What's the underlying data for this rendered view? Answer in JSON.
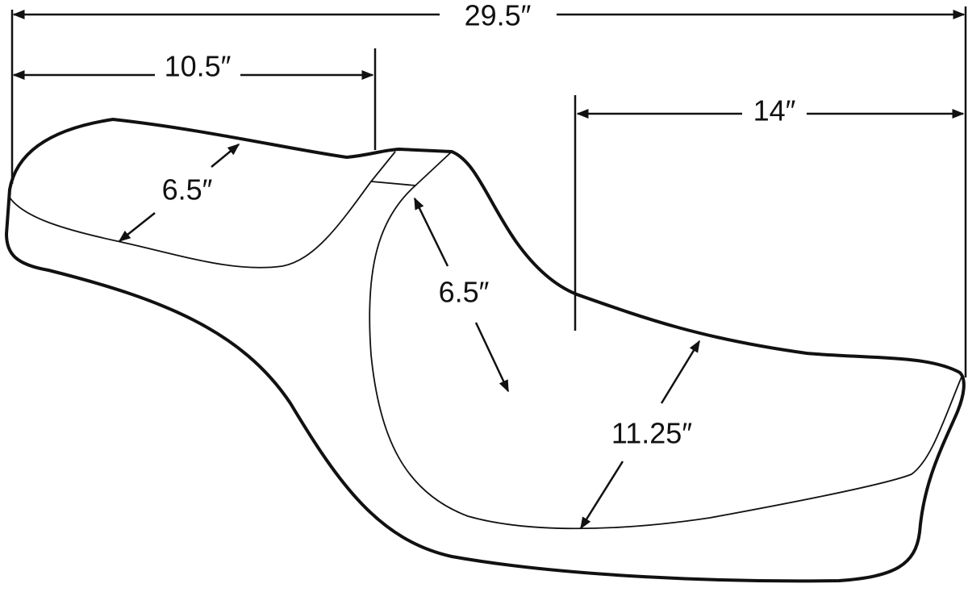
{
  "dimensions": [
    "29.5″",
    "10.5″",
    "14″",
    "6.5″",
    "6.5″",
    "11.25″"
  ]
}
